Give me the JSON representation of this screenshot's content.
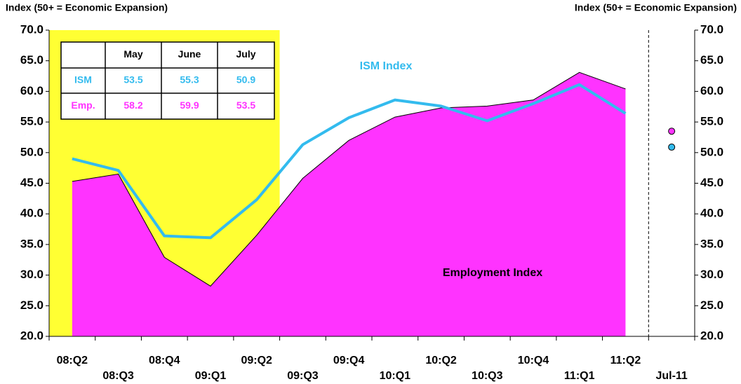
{
  "chart_data": {
    "type": "area-line",
    "ylabel": "Index (50+ = Economic Expansion)",
    "y2label": "Index (50+ = Economic Expansion)",
    "categories": [
      "08:Q2",
      "08:Q3",
      "08:Q4",
      "09:Q1",
      "09:Q2",
      "09:Q3",
      "09:Q4",
      "10:Q1",
      "10:Q2",
      "10:Q3",
      "10:Q4",
      "11:Q1",
      "11:Q2"
    ],
    "latest_label": "Jul-11",
    "series": [
      {
        "name": "ISM Index",
        "kind": "line",
        "color": "#33bbee",
        "values": [
          49.0,
          47.1,
          36.4,
          36.1,
          42.3,
          51.3,
          55.7,
          58.6,
          57.6,
          55.2,
          58.0,
          61.1,
          56.4
        ]
      },
      {
        "name": "Employment Index",
        "kind": "area",
        "color": "#ff33ff",
        "values": [
          45.3,
          46.5,
          32.9,
          28.2,
          36.5,
          45.8,
          52.0,
          55.8,
          57.3,
          57.6,
          58.6,
          63.1,
          60.4
        ]
      }
    ],
    "shade_through_index": 4,
    "shade_color": "#ffff33",
    "ylim": [
      20,
      70
    ],
    "yticks": [
      {
        "value": 20,
        "label": "20.0"
      },
      {
        "value": 25,
        "label": "25.0"
      },
      {
        "value": 30,
        "label": "30.0"
      },
      {
        "value": 35,
        "label": "35.0"
      },
      {
        "value": 40,
        "label": "40.0"
      },
      {
        "value": 45,
        "label": "45.0"
      },
      {
        "value": 50,
        "label": "50.0"
      },
      {
        "value": 55,
        "label": "55.0"
      },
      {
        "value": 60,
        "label": "60.0"
      },
      {
        "value": 65,
        "label": "65.0"
      },
      {
        "value": 70,
        "label": "70.0"
      }
    ],
    "y2lim": [
      20,
      70
    ],
    "y2ticks": [
      {
        "value": 20,
        "label": "20.0"
      },
      {
        "value": 25,
        "label": "25.0"
      },
      {
        "value": 30,
        "label": "30.0"
      },
      {
        "value": 35,
        "label": "35.0"
      },
      {
        "value": 40,
        "label": "40.0"
      },
      {
        "value": 45,
        "label": "45.0"
      },
      {
        "value": 50,
        "label": "50.0"
      },
      {
        "value": 55,
        "label": "55.0"
      },
      {
        "value": 60,
        "label": "60.0"
      },
      {
        "value": 65,
        "label": "65.0"
      },
      {
        "value": 70,
        "label": "70.0"
      }
    ],
    "table": {
      "columns": [
        "May",
        "June",
        "July"
      ],
      "rows": [
        {
          "label": "ISM",
          "values": [
            53.5,
            55.3,
            50.9
          ]
        },
        {
          "label": "Emp.",
          "values": [
            58.2,
            59.9,
            53.5
          ]
        }
      ]
    }
  }
}
